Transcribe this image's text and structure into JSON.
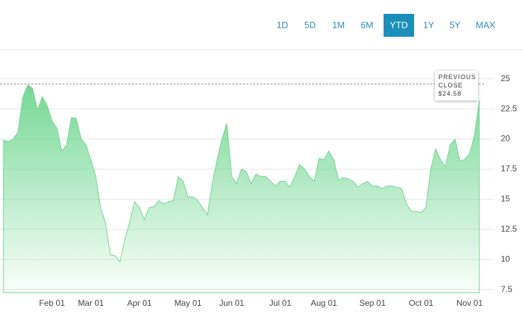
{
  "chart_data": {
    "type": "area",
    "range_buttons": [
      "1D",
      "5D",
      "1M",
      "6M",
      "YTD",
      "1Y",
      "5Y",
      "MAX"
    ],
    "selected_button": 4,
    "categories": [
      null,
      null,
      null,
      null,
      null,
      null,
      null,
      null,
      null,
      null,
      "Feb 01",
      null,
      null,
      null,
      null,
      null,
      null,
      null,
      "Mar 01",
      null,
      null,
      null,
      null,
      null,
      null,
      null,
      null,
      null,
      "Apr 01",
      null,
      null,
      null,
      null,
      null,
      null,
      null,
      null,
      null,
      "May 01",
      null,
      null,
      null,
      null,
      null,
      null,
      null,
      null,
      "Jun 01",
      null,
      null,
      null,
      null,
      null,
      null,
      null,
      null,
      null,
      "Jul 01",
      null,
      null,
      null,
      null,
      null,
      null,
      null,
      null,
      "Aug 01",
      null,
      null,
      null,
      null,
      null,
      null,
      null,
      null,
      null,
      "Sep 01",
      null,
      null,
      null,
      null,
      null,
      null,
      null,
      null,
      null,
      "Oct 01",
      null,
      null,
      null,
      null,
      null,
      null,
      null,
      null,
      null,
      "Nov 01",
      null,
      null
    ],
    "values": [
      19.9,
      19.8,
      20.0,
      20.6,
      23.5,
      24.5,
      24.2,
      22.4,
      23.5,
      22.8,
      21.5,
      20.9,
      19.0,
      19.5,
      21.8,
      21.7,
      20.0,
      19.5,
      18.3,
      16.9,
      14.3,
      13.1,
      10.4,
      10.3,
      9.8,
      11.7,
      13.1,
      14.8,
      14.3,
      13.3,
      14.3,
      14.4,
      14.9,
      14.6,
      14.8,
      14.9,
      16.9,
      16.5,
      15.2,
      15.2,
      14.9,
      14.3,
      13.7,
      16.3,
      18.3,
      20.0,
      21.3,
      16.9,
      16.3,
      17.5,
      17.3,
      16.3,
      17.1,
      16.9,
      16.9,
      16.5,
      16.1,
      16.5,
      16.5,
      16.0,
      16.9,
      17.9,
      17.5,
      16.9,
      16.5,
      18.4,
      18.3,
      19.0,
      18.3,
      16.6,
      16.8,
      16.7,
      16.5,
      16.0,
      16.3,
      16.5,
      16.1,
      16.1,
      15.9,
      16.1,
      16.1,
      16.0,
      15.9,
      14.6,
      14.0,
      14.0,
      13.9,
      14.3,
      17.5,
      19.2,
      18.3,
      17.7,
      19.5,
      20.0,
      18.2,
      18.3,
      18.8,
      20.3,
      23.2
    ],
    "color": "#6fd68f",
    "ylim": [
      7.25,
      27.4
    ],
    "yticks": [
      7.5,
      10,
      12.5,
      15,
      17.5,
      20,
      22.5,
      25
    ],
    "grid": true,
    "previous_close": {
      "label": "PREVIOUS CLOSE",
      "value": 24.58,
      "value_label": "$24.58"
    }
  }
}
